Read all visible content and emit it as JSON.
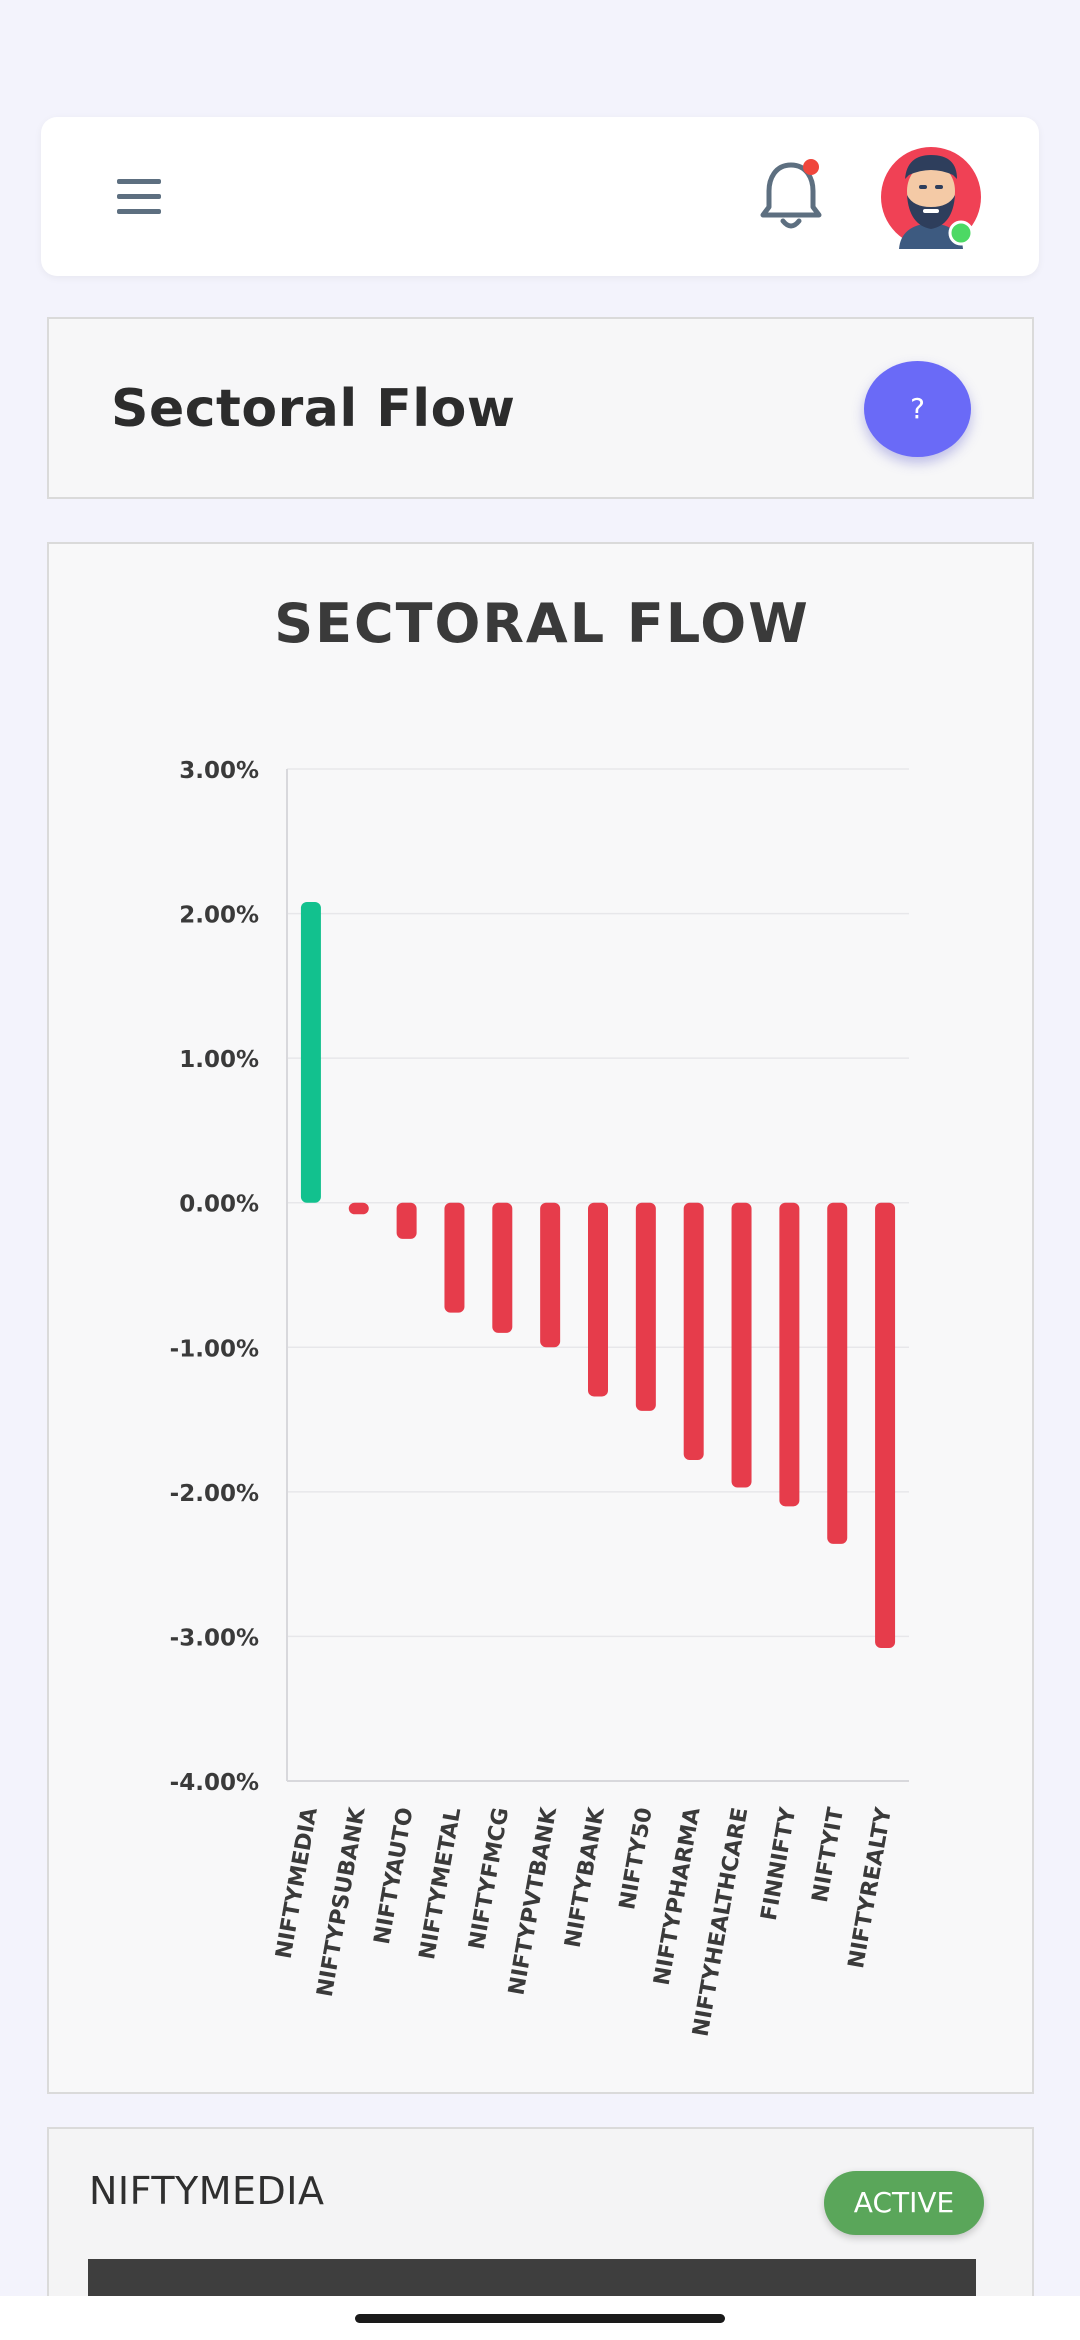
{
  "header": {
    "menu_icon": "hamburger-menu-icon",
    "notification_icon": "bell-icon",
    "notification_dot_color": "#f0463c",
    "avatar_status_color": "#4cd964"
  },
  "page": {
    "title": "Sectoral Flow",
    "help_label": "?"
  },
  "chart_data": {
    "type": "bar",
    "title": "SECTORAL FLOW",
    "categories": [
      "NIFTYMEDIA",
      "NIFTYPSUBANK",
      "NIFTYAUTO",
      "NIFTYMETAL",
      "NIFTYFMCG",
      "NIFTYPVTBANK",
      "NIFTYBANK",
      "NIFTY50",
      "NIFTYPHARMA",
      "NIFTYHEALTHCARE",
      "FINNIFTY",
      "NIFTYIT",
      "NIFTYREALTY"
    ],
    "values": [
      2.08,
      -0.08,
      -0.25,
      -0.76,
      -0.9,
      -1.0,
      -1.34,
      -1.44,
      -1.78,
      -1.97,
      -2.1,
      -2.36,
      -3.08
    ],
    "ylim": [
      -4,
      3
    ],
    "yticks": [
      3,
      2,
      1,
      0,
      -1,
      -2,
      -3,
      -4
    ],
    "ytick_labels": [
      "3.00%",
      "2.00%",
      "1.00%",
      "0.00%",
      "-1.00%",
      "-2.00%",
      "-3.00%",
      "-4.00%"
    ],
    "grid": true,
    "positive_color": "#12c18e",
    "negative_color": "#e63c4b"
  },
  "detail": {
    "title": "NIFTYMEDIA",
    "status": "ACTIVE"
  }
}
